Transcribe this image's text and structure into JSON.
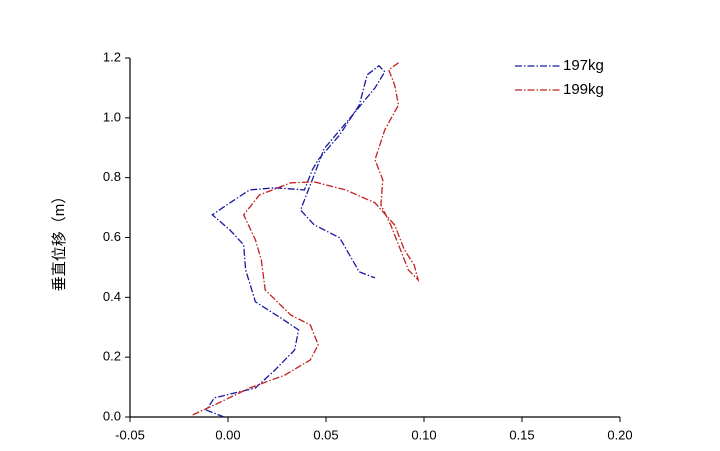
{
  "chart_data": {
    "type": "line",
    "y_label": "垂直位移（m）",
    "xlim": [
      -0.05,
      0.2
    ],
    "ylim": [
      0,
      1.2
    ],
    "xticks": [
      {
        "value": -0.05,
        "label": "-0.05"
      },
      {
        "value": 0,
        "label": "0.00"
      },
      {
        "value": 0.05,
        "label": "0.05"
      },
      {
        "value": 0.1,
        "label": "0.10"
      },
      {
        "value": 0.15,
        "label": "0.15"
      },
      {
        "value": 0.2,
        "label": "0.20"
      }
    ],
    "yticks": [
      {
        "value": 0,
        "label": "0.0"
      },
      {
        "value": 0.2,
        "label": "0.2"
      },
      {
        "value": 0.4,
        "label": "0.4"
      },
      {
        "value": 0.6,
        "label": "0.6"
      },
      {
        "value": 0.8,
        "label": "0.8"
      },
      {
        "value": 1.0,
        "label": "1.0"
      },
      {
        "value": 1.2,
        "label": "1.2"
      }
    ],
    "legend": "upper right",
    "line_style": "dash-dot",
    "series": [
      {
        "name": "197kg",
        "color": "#1a1aa0",
        "x": [
          -0.002,
          -0.011,
          -0.007,
          0.014,
          0.024,
          0.034,
          0.036,
          0.027,
          0.014,
          0.009,
          0.008,
          0.001,
          -0.008,
          0.001,
          0.011,
          0.024,
          0.039,
          0.043,
          0.046,
          0.057,
          0.067,
          0.071,
          0.077,
          0.08,
          0.075,
          0.062,
          0.049,
          0.043,
          0.037,
          0.044,
          0.057,
          0.062,
          0.067,
          0.075
        ],
        "values": [
          0.0,
          0.023,
          0.064,
          0.097,
          0.157,
          0.224,
          0.291,
          0.331,
          0.385,
          0.492,
          0.575,
          0.625,
          0.676,
          0.716,
          0.759,
          0.766,
          0.759,
          0.826,
          0.86,
          0.943,
          1.043,
          1.144,
          1.174,
          1.154,
          1.1,
          0.997,
          0.896,
          0.793,
          0.692,
          0.642,
          0.599,
          0.542,
          0.485,
          0.465
        ]
      },
      {
        "name": "199kg",
        "color": "#c0201f",
        "x": [
          -0.018,
          -0.007,
          0.011,
          0.029,
          0.042,
          0.046,
          0.042,
          0.032,
          0.019,
          0.017,
          0.014,
          0.008,
          0.016,
          0.032,
          0.044,
          0.06,
          0.075,
          0.085,
          0.09,
          0.095,
          0.097,
          0.092,
          0.088,
          0.083,
          0.078,
          0.079,
          0.075,
          0.08,
          0.087,
          0.085,
          0.082,
          0.087
        ],
        "values": [
          0.007,
          0.04,
          0.097,
          0.14,
          0.191,
          0.241,
          0.308,
          0.341,
          0.425,
          0.525,
          0.592,
          0.676,
          0.742,
          0.783,
          0.786,
          0.759,
          0.716,
          0.642,
          0.559,
          0.508,
          0.458,
          0.492,
          0.559,
          0.642,
          0.709,
          0.793,
          0.86,
          0.96,
          1.043,
          1.11,
          1.161,
          1.184
        ]
      }
    ]
  }
}
